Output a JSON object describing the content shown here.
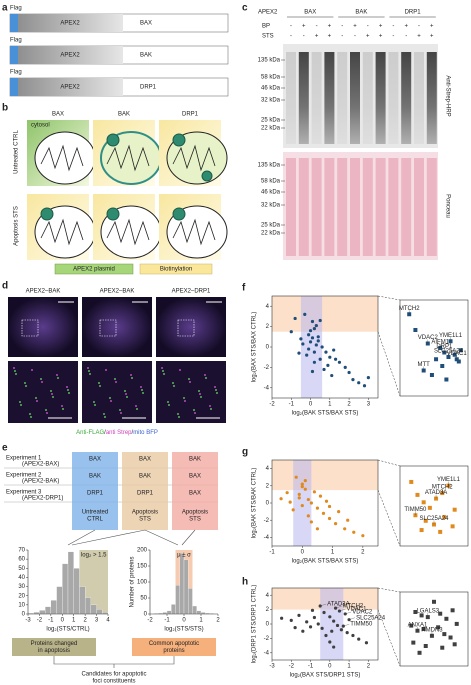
{
  "panel_labels": [
    "a",
    "b",
    "c",
    "d",
    "e",
    "f",
    "g",
    "h"
  ],
  "a": {
    "flag": "Flag",
    "apex": "APEX2",
    "constructs": [
      "BAX",
      "BAK",
      "DRP1"
    ]
  },
  "b": {
    "columns": [
      "BAX",
      "BAK",
      "DRP1"
    ],
    "rows": [
      "Untreated CTRL",
      "Apoptosis STS"
    ],
    "cytosol": "cytosol",
    "legend": [
      "APEX2 plasmid",
      "Biotinylation"
    ]
  },
  "c": {
    "apex_label": "APEX2",
    "groups": [
      "BAX",
      "BAK",
      "DRP1"
    ],
    "bp_label": "BP",
    "sts_label": "STS",
    "bp": [
      "-",
      "+",
      "-",
      "+",
      "-",
      "+",
      "-",
      "+",
      "-",
      "+",
      "-",
      "+"
    ],
    "sts": [
      "-",
      "-",
      "+",
      "+",
      "-",
      "-",
      "+",
      "+",
      "-",
      "-",
      "+",
      "+"
    ],
    "markers": [
      "135 kDa",
      "58 kDa",
      "46 kDa",
      "32 kDa",
      "25 kDa",
      "22 kDa"
    ],
    "blot_label": "Anti-Strep-HRP",
    "ponceau_label": "Ponceau"
  },
  "d": {
    "titles": [
      "APEX2–BAK",
      "APEX2–BAK",
      "APEX2–DRP1"
    ],
    "legend": [
      "Anti-FLAG",
      "/",
      "anti Strep",
      "/",
      "mito BFP"
    ]
  },
  "e": {
    "experiments": [
      {
        "name": "Experiment 1",
        "sub": "(APEX2-BAX)"
      },
      {
        "name": "Experiment 2",
        "sub": "(APEX2-BAK)"
      },
      {
        "name": "Experiment 3",
        "sub": "(APEX2-DRP1)"
      }
    ],
    "columns": [
      {
        "cells": [
          "BAX",
          "BAK",
          "DRP1"
        ],
        "label": [
          "Untreated",
          "CTRL"
        ]
      },
      {
        "cells": [
          "BAX",
          "BAK",
          "DRP1"
        ],
        "label": [
          "Apoptosis",
          "STS"
        ]
      },
      {
        "cells": [
          "BAK",
          "BAX",
          "BAX"
        ],
        "label": [
          "Apoptosis",
          "STS"
        ]
      }
    ],
    "left_box": [
      "Proteins changed",
      "in apoptosis"
    ],
    "right_box": [
      "Common apoptotic",
      "proteins"
    ],
    "result": [
      "Candidates for apoptotic",
      "foci constituents"
    ]
  },
  "chart_data": [
    {
      "type": "histogram",
      "bins": [
        -3,
        -2.5,
        -2,
        -1.5,
        -1,
        -0.5,
        0,
        0.5,
        1,
        1.5,
        2,
        2.5,
        3,
        3.5,
        4
      ],
      "counts": [
        1,
        2,
        4,
        8,
        15,
        30,
        55,
        68,
        50,
        30,
        18,
        10,
        5,
        2
      ],
      "color": "#a8a8a8",
      "xlim": [
        -3,
        4
      ],
      "ylim": [
        0,
        70
      ],
      "xticks": [
        -3,
        -2,
        -1,
        0,
        1,
        2,
        3,
        4
      ],
      "yticks": [
        0,
        10,
        20,
        30,
        40,
        50,
        60,
        70
      ],
      "xlabel": "log₂(STS/CTRL)",
      "highlight_x": [
        1.5,
        4
      ],
      "highlight_color": "#a9a26a",
      "annotation": "log₂ > 1.5"
    },
    {
      "type": "histogram",
      "bins": [
        -2,
        -1.75,
        -1.5,
        -1.25,
        -1,
        -0.75,
        -0.5,
        -0.25,
        0,
        0.25,
        0.5,
        0.75,
        1,
        1.25,
        1.5,
        1.75,
        2
      ],
      "counts": [
        1,
        2,
        3,
        5,
        10,
        30,
        90,
        190,
        170,
        80,
        25,
        10,
        5,
        3,
        2,
        1
      ],
      "color": "#a8a8a8",
      "xlim": [
        -2,
        2
      ],
      "ylim": [
        0,
        200
      ],
      "xticks": [
        -2,
        -1,
        0,
        1,
        2
      ],
      "yticks": [
        0,
        50,
        100,
        150,
        200
      ],
      "xlabel": "log₂(STS/STS)",
      "ylabel": "Number of proteins",
      "highlight_x": [
        -0.5,
        0.5
      ],
      "highlight_color": "#f0a070",
      "annotation": "μ ± σ"
    },
    {
      "type": "scatter",
      "color": "#1f4e79",
      "xlim": [
        -2,
        3.5
      ],
      "ylim": [
        -5,
        5
      ],
      "xticks": [
        -2,
        -1,
        0,
        1,
        2,
        3
      ],
      "yticks": [
        -4,
        -2,
        0,
        2,
        4
      ],
      "xlabel": "log₂(BAK STS/BAX STS)",
      "ylabel": "log₂(BAX STS/BAX CTRL)",
      "highlight_x": [
        -0.5,
        0.6
      ],
      "highlight_y": [
        1.5,
        5
      ],
      "x": [
        -0.3,
        0.1,
        0.2,
        -0.1,
        0.4,
        0.0,
        0.3,
        -0.5,
        0.6,
        0.8,
        1.0,
        1.2,
        1.5,
        1.8,
        2.0,
        2.5,
        2.8,
        3.0,
        -0.8,
        -1.0,
        0.2,
        0.5,
        0.1,
        -0.2,
        0.3,
        0.7,
        0.9,
        0.0,
        -0.4,
        1.1,
        1.3,
        0.4,
        0.2,
        -0.1,
        2.2,
        -0.6,
        0.1,
        0.5
      ],
      "y": [
        3.2,
        2.5,
        1.8,
        1.2,
        1.0,
        0.5,
        0.2,
        0.8,
        0.0,
        -0.5,
        -1.0,
        -0.3,
        -1.5,
        -2.0,
        -2.5,
        -3.5,
        -3.8,
        -3.0,
        2.8,
        1.5,
        -0.5,
        -1.2,
        0.9,
        -0.8,
        2.1,
        -2.2,
        -1.8,
        1.6,
        0.3,
        -2.8,
        -1.2,
        0.6,
        -1.5,
        -0.2,
        -3.2,
        -0.6,
        -2.4,
        2.6
      ],
      "annotations": [],
      "inset": {
        "xlim": [
          0,
          3
        ],
        "ylim": [
          0,
          4
        ],
        "x": [
          0.3,
          1.2,
          1.6,
          1.8,
          2.0,
          2.2,
          2.3,
          2.5,
          2.6,
          2.7,
          1.4,
          1.9,
          2.8,
          1.0,
          2.1,
          0.6
        ],
        "y": [
          3.5,
          2.2,
          1.5,
          2.0,
          1.8,
          1.6,
          2.3,
          1.7,
          1.5,
          1.4,
          0.8,
          1.2,
          1.9,
          1.0,
          0.6,
          2.8
        ],
        "labels": [
          {
            "text": "MTCH2",
            "x": 0.3,
            "y": 3.5
          },
          {
            "text": "VDAC2",
            "x": 1.2,
            "y": 2.2
          },
          {
            "text": "AIFM1",
            "x": 1.8,
            "y": 2.0
          },
          {
            "text": "DRP1",
            "x": 2.0,
            "y": 1.8
          },
          {
            "text": "YME1L1",
            "x": 2.3,
            "y": 2.3
          },
          {
            "text": "MTT",
            "x": 1.0,
            "y": 1.0
          },
          {
            "text": "SLC25A24",
            "x": 2.2,
            "y": 1.6
          },
          {
            "text": "VDAC1",
            "x": 2.6,
            "y": 1.5
          }
        ]
      }
    },
    {
      "type": "scatter",
      "color": "#e08a1e",
      "xlim": [
        -1,
        2.5
      ],
      "ylim": [
        -5,
        5
      ],
      "xticks": [
        -1,
        0,
        1,
        2
      ],
      "yticks": [
        -4,
        -2,
        0,
        2,
        4
      ],
      "xlabel": "log₂(BAK STS/BAX STS)",
      "ylabel": "log₂(BAK STS/BAK CTRL)",
      "highlight_x": [
        -0.3,
        0.3
      ],
      "highlight_y": [
        1.5,
        5
      ],
      "x": [
        -0.2,
        0.0,
        0.1,
        -0.1,
        0.2,
        0.3,
        0.5,
        0.7,
        0.9,
        1.1,
        1.4,
        1.7,
        2.0,
        -0.5,
        -0.7,
        0.0,
        0.1,
        0.4,
        0.6,
        -0.3,
        0.2,
        0.8,
        1.2,
        -0.1,
        0.3,
        1.5,
        0.0,
        -0.4,
        0.5,
        0.9
      ],
      "y": [
        3.0,
        2.2,
        1.6,
        1.0,
        0.4,
        0.0,
        -0.6,
        -1.2,
        -1.8,
        -2.4,
        -3.0,
        -3.4,
        -3.8,
        1.2,
        0.5,
        -0.3,
        2.6,
        1.3,
        0.8,
        -0.8,
        -1.5,
        0.2,
        -1.0,
        0.6,
        -2.2,
        -2.0,
        1.9,
        0.1,
        -3.0,
        -0.4
      ],
      "annotations": [],
      "inset": {
        "xlim": [
          0,
          3
        ],
        "ylim": [
          0,
          4
        ],
        "x": [
          0.4,
          0.7,
          1.0,
          1.3,
          1.6,
          1.9,
          2.2,
          2.5,
          0.6,
          1.1,
          1.5,
          2.0,
          2.4,
          0.9,
          1.8
        ],
        "y": [
          3.3,
          2.6,
          2.2,
          1.9,
          2.4,
          2.7,
          3.1,
          1.8,
          1.5,
          1.2,
          1.0,
          1.4,
          0.9,
          0.7,
          0.6
        ],
        "labels": [
          {
            "text": "YME1L1",
            "x": 2.2,
            "y": 3.1
          },
          {
            "text": "ATAD3A",
            "x": 1.6,
            "y": 2.4
          },
          {
            "text": "MTCH2",
            "x": 1.9,
            "y": 2.7
          },
          {
            "text": "TIMM50",
            "x": 0.6,
            "y": 1.5
          },
          {
            "text": "SLC25A24",
            "x": 1.5,
            "y": 1.0
          }
        ]
      }
    },
    {
      "type": "scatter",
      "color": "#404040",
      "xlim": [
        -3,
        2.5
      ],
      "ylim": [
        -5,
        5
      ],
      "xticks": [
        -3,
        -2,
        -1,
        0,
        1,
        2
      ],
      "yticks": [
        -4,
        -2,
        0,
        2,
        4
      ],
      "xlabel": "log₂(BAX STS/DRP1 STS)",
      "ylabel": "log₂(DRP1 STS/DRP1 CTRL)",
      "highlight_x": [
        -0.5,
        0.7
      ],
      "highlight_y": [
        2,
        5
      ],
      "x": [
        -2.5,
        -2.0,
        -1.6,
        -1.2,
        -0.8,
        -0.5,
        -0.3,
        0.0,
        0.2,
        0.4,
        0.6,
        0.9,
        1.2,
        1.5,
        1.9,
        -1.8,
        -1.0,
        -0.6,
        0.1,
        0.3,
        0.5,
        0.8,
        -0.2,
        -1.4,
        0.0,
        0.7,
        1.0,
        -0.9,
        0.2,
        -0.4
      ],
      "y": [
        0.8,
        0.5,
        1.2,
        0.3,
        0.9,
        2.5,
        1.6,
        1.0,
        0.4,
        -0.2,
        -0.8,
        -1.2,
        -1.6,
        -2.1,
        -2.6,
        -0.5,
        -0.4,
        0.0,
        -1.0,
        2.2,
        1.8,
        1.4,
        -1.6,
        -1.0,
        -2.5,
        -0.3,
        0.6,
        1.9,
        -3.2,
        -0.6
      ],
      "annotations": [
        {
          "text": "ATAD3A",
          "x": -0.5,
          "y": 2.5
        },
        {
          "text": "MTCH2",
          "x": 0.3,
          "y": 2.2
        },
        {
          "text": "VDAC1",
          "x": 0.5,
          "y": 1.8
        },
        {
          "text": "VDAC2",
          "x": 0.8,
          "y": 1.4
        },
        {
          "text": "SLC25A24",
          "x": 1.0,
          "y": 0.6
        },
        {
          "text": "TIMM50",
          "x": 0.7,
          "y": -0.3
        }
      ],
      "inset": {
        "xlim": [
          0,
          3
        ],
        "ylim": [
          0,
          4
        ],
        "x": [
          1.5,
          0.6,
          0.9,
          1.2,
          1.8,
          2.1,
          2.4,
          0.4,
          0.7,
          1.0,
          1.4,
          1.7,
          2.0,
          2.3,
          2.6,
          0.5,
          1.1,
          1.9,
          2.5,
          0.8
        ],
        "y": [
          3.6,
          3.0,
          2.8,
          2.7,
          2.9,
          2.6,
          3.1,
          2.2,
          1.9,
          2.0,
          1.6,
          2.1,
          1.7,
          1.5,
          2.3,
          1.2,
          1.0,
          0.9,
          1.1,
          0.6
        ],
        "labels": [
          {
            "text": "LGALS3",
            "x": 1.2,
            "y": 2.7
          },
          {
            "text": "ANXA1",
            "x": 0.7,
            "y": 1.9
          },
          {
            "text": "RMDN3",
            "x": 1.4,
            "y": 1.6
          }
        ]
      }
    }
  ]
}
